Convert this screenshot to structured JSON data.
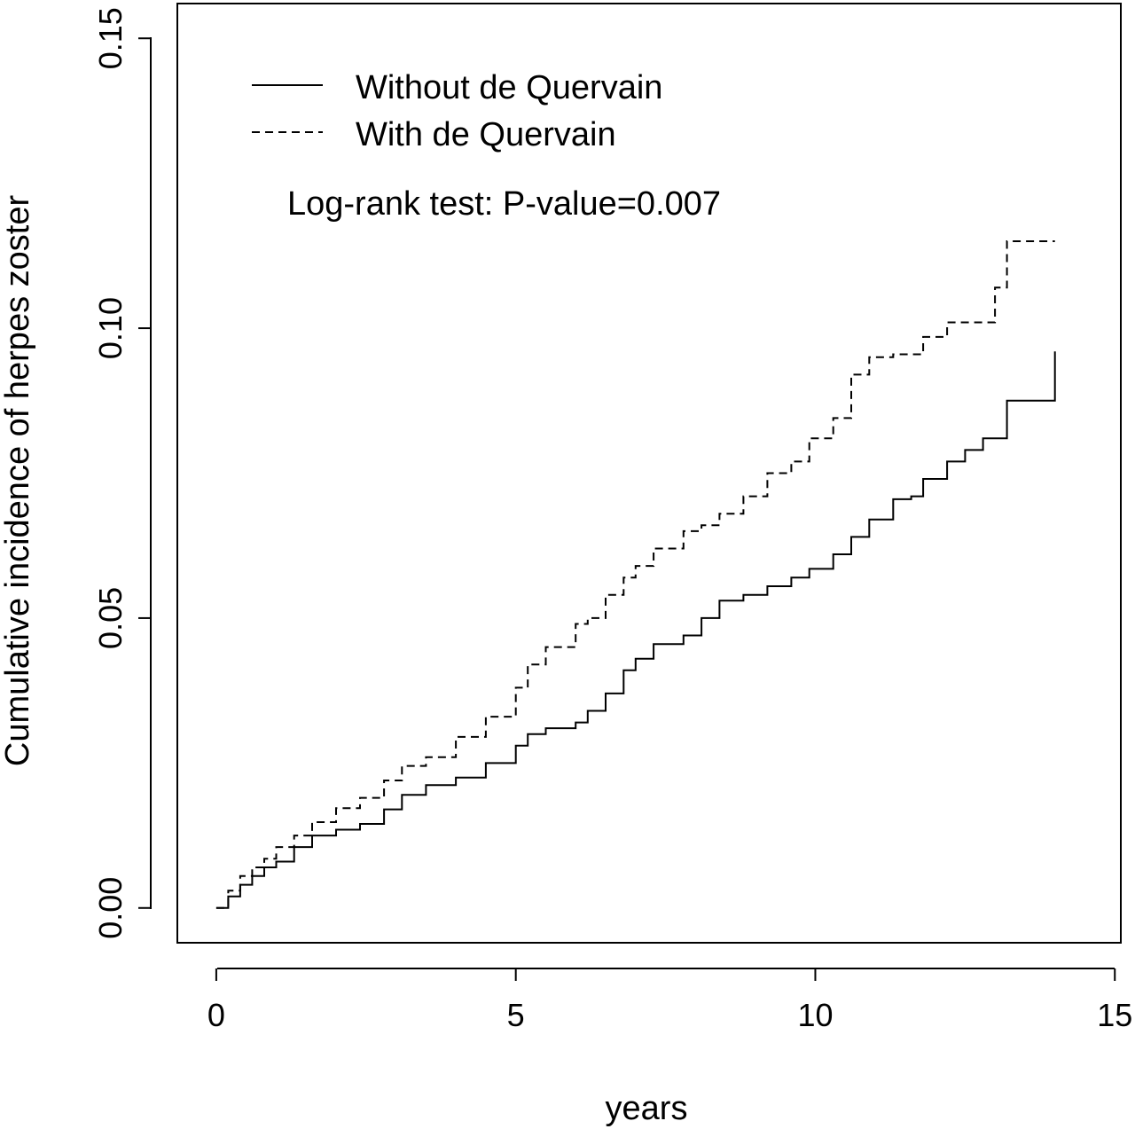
{
  "chart_data": {
    "type": "line",
    "title": "",
    "xlabel": "years",
    "ylabel": "Cumulative incidence of herpes zoster",
    "xlim": [
      -0.65,
      15.1
    ],
    "ylim": [
      -0.006,
      0.156
    ],
    "x_ticks": [
      0,
      5,
      10,
      15
    ],
    "x_tick_labels": [
      "0",
      "5",
      "10",
      "15"
    ],
    "y_ticks": [
      0,
      0.05,
      0.1,
      0.15
    ],
    "y_tick_labels": [
      "0.00",
      "0.05",
      "0.10",
      "0.15"
    ],
    "grid": false,
    "legend_position": "top-left",
    "annotation": "Log-rank test: P-value=0.007",
    "series": [
      {
        "name": "Without de Quervain",
        "line_style": "solid",
        "color": "#000000",
        "x": [
          0,
          0.2,
          0.4,
          0.6,
          0.8,
          1.0,
          1.3,
          1.6,
          2.0,
          2.4,
          2.8,
          3.1,
          3.5,
          4.0,
          4.5,
          5.0,
          5.2,
          5.5,
          6.0,
          6.2,
          6.5,
          6.8,
          7.0,
          7.3,
          7.8,
          8.1,
          8.4,
          8.8,
          9.2,
          9.6,
          9.9,
          10.3,
          10.6,
          10.9,
          11.3,
          11.6,
          11.8,
          12.2,
          12.5,
          12.8,
          13.0,
          13.2,
          14.0
        ],
        "y": [
          0,
          0.002,
          0.004,
          0.0055,
          0.007,
          0.008,
          0.0105,
          0.0125,
          0.0135,
          0.0145,
          0.017,
          0.0195,
          0.0212,
          0.0225,
          0.025,
          0.028,
          0.03,
          0.031,
          0.032,
          0.034,
          0.037,
          0.041,
          0.043,
          0.0455,
          0.047,
          0.05,
          0.053,
          0.054,
          0.0555,
          0.057,
          0.0585,
          0.061,
          0.064,
          0.067,
          0.0705,
          0.071,
          0.074,
          0.077,
          0.079,
          0.081,
          0.081,
          0.0875,
          0.096
        ]
      },
      {
        "name": "With de Quervain",
        "line_style": "dashed",
        "color": "#000000",
        "x": [
          0,
          0.2,
          0.4,
          0.6,
          0.8,
          1.0,
          1.3,
          1.6,
          2.0,
          2.4,
          2.8,
          3.1,
          3.5,
          4.0,
          4.5,
          5.0,
          5.2,
          5.5,
          6.0,
          6.2,
          6.5,
          6.8,
          7.0,
          7.3,
          7.8,
          8.1,
          8.4,
          8.8,
          9.2,
          9.6,
          9.9,
          10.3,
          10.6,
          10.9,
          11.3,
          11.6,
          11.8,
          12.2,
          12.5,
          12.8,
          13.0,
          13.2,
          14.0
        ],
        "y": [
          0,
          0.003,
          0.0055,
          0.007,
          0.0085,
          0.0105,
          0.0125,
          0.0148,
          0.0172,
          0.019,
          0.022,
          0.0245,
          0.026,
          0.0295,
          0.033,
          0.038,
          0.042,
          0.045,
          0.049,
          0.05,
          0.054,
          0.057,
          0.059,
          0.062,
          0.065,
          0.066,
          0.068,
          0.071,
          0.075,
          0.077,
          0.081,
          0.0845,
          0.092,
          0.095,
          0.0955,
          0.0955,
          0.0985,
          0.101,
          0.101,
          0.101,
          0.107,
          0.115,
          0.115
        ]
      }
    ]
  }
}
